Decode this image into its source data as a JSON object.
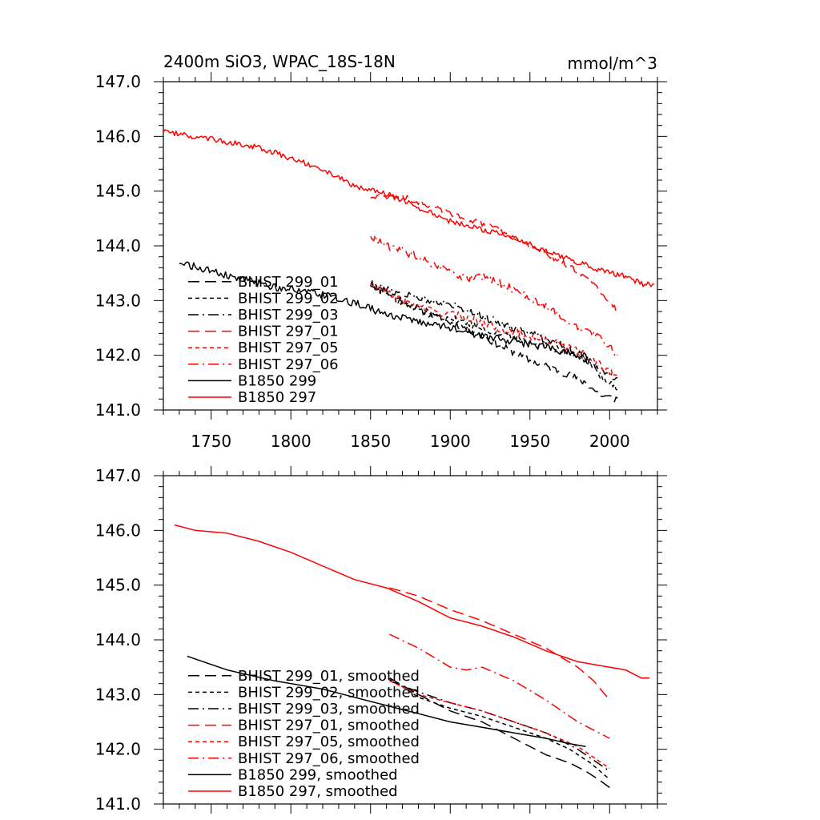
{
  "figure": {
    "title_left": "2400m SiO3, WPAC_18S-18N",
    "title_right": "mmol/m^3"
  },
  "chart_data": [
    {
      "type": "line",
      "title": "2400m SiO3, WPAC_18S-18N",
      "unit": "mmol/m^3",
      "xlim": [
        1720,
        2030
      ],
      "ylim": [
        141.0,
        147.0
      ],
      "x_ticks": [
        1750,
        1800,
        1850,
        1900,
        1950,
        2000
      ],
      "y_ticks": [
        "141.0",
        "142.0",
        "143.0",
        "144.0",
        "145.0",
        "146.0",
        "147.0"
      ],
      "legend_position": "lower-left",
      "series": [
        {
          "name": "BHIST 299_01",
          "color": "#000000",
          "dash": "long-dash",
          "noise": 0.07,
          "points": [
            [
              1850,
              143.3
            ],
            [
              1870,
              143.0
            ],
            [
              1890,
              142.7
            ],
            [
              1910,
              142.5
            ],
            [
              1930,
              142.2
            ],
            [
              1950,
              141.9
            ],
            [
              1970,
              141.7
            ],
            [
              1985,
              141.5
            ],
            [
              1995,
              141.25
            ],
            [
              2005,
              141.2
            ]
          ]
        },
        {
          "name": "BHIST 299_02",
          "color": "#000000",
          "dash": "short-dash",
          "noise": 0.07,
          "points": [
            [
              1850,
              143.3
            ],
            [
              1870,
              142.95
            ],
            [
              1890,
              142.75
            ],
            [
              1910,
              142.6
            ],
            [
              1930,
              142.4
            ],
            [
              1950,
              142.25
            ],
            [
              1970,
              142.1
            ],
            [
              1985,
              141.9
            ],
            [
              1995,
              141.6
            ],
            [
              2005,
              141.4
            ]
          ]
        },
        {
          "name": "BHIST 299_03",
          "color": "#000000",
          "dash": "dash-dot",
          "noise": 0.07,
          "points": [
            [
              1850,
              143.3
            ],
            [
              1870,
              143.1
            ],
            [
              1890,
              143.0
            ],
            [
              1910,
              142.85
            ],
            [
              1930,
              142.6
            ],
            [
              1950,
              142.4
            ],
            [
              1970,
              142.2
            ],
            [
              1985,
              141.95
            ],
            [
              1995,
              141.7
            ],
            [
              2005,
              141.55
            ]
          ]
        },
        {
          "name": "BHIST 297_01",
          "color": "#ff0000",
          "dash": "long-dash",
          "noise": 0.05,
          "points": [
            [
              1850,
              144.9
            ],
            [
              1870,
              144.9
            ],
            [
              1890,
              144.7
            ],
            [
              1910,
              144.5
            ],
            [
              1930,
              144.3
            ],
            [
              1950,
              144.0
            ],
            [
              1970,
              143.7
            ],
            [
              1985,
              143.45
            ],
            [
              1995,
              143.15
            ],
            [
              2005,
              142.8
            ]
          ]
        },
        {
          "name": "BHIST 297_05",
          "color": "#ff0000",
          "dash": "short-dash",
          "noise": 0.07,
          "points": [
            [
              1850,
              143.3
            ],
            [
              1870,
              143.0
            ],
            [
              1890,
              142.8
            ],
            [
              1910,
              142.7
            ],
            [
              1930,
              142.5
            ],
            [
              1950,
              142.35
            ],
            [
              1970,
              142.2
            ],
            [
              1985,
              142.0
            ],
            [
              1995,
              141.8
            ],
            [
              2005,
              141.6
            ]
          ]
        },
        {
          "name": "BHIST 297_06",
          "color": "#ff0000",
          "dash": "dash-dot",
          "noise": 0.07,
          "points": [
            [
              1850,
              144.2
            ],
            [
              1860,
              144.0
            ],
            [
              1880,
              143.8
            ],
            [
              1900,
              143.5
            ],
            [
              1910,
              143.4
            ],
            [
              1920,
              143.45
            ],
            [
              1940,
              143.2
            ],
            [
              1960,
              142.9
            ],
            [
              1980,
              142.5
            ],
            [
              1995,
              142.3
            ],
            [
              2005,
              142.0
            ]
          ]
        },
        {
          "name": "B1850 299",
          "color": "#000000",
          "dash": "solid",
          "noise": 0.07,
          "points": [
            [
              1730,
              143.7
            ],
            [
              1760,
              143.45
            ],
            [
              1790,
              143.25
            ],
            [
              1820,
              143.1
            ],
            [
              1840,
              142.95
            ],
            [
              1860,
              142.75
            ],
            [
              1880,
              142.6
            ],
            [
              1900,
              142.5
            ],
            [
              1920,
              142.35
            ],
            [
              1940,
              142.25
            ],
            [
              1960,
              142.15
            ],
            [
              1975,
              142.05
            ],
            [
              1988,
              141.95
            ]
          ]
        },
        {
          "name": "B1850 297",
          "color": "#ff0000",
          "dash": "solid",
          "noise": 0.05,
          "points": [
            [
              1720,
              146.1
            ],
            [
              1740,
              146.0
            ],
            [
              1760,
              145.9
            ],
            [
              1780,
              145.8
            ],
            [
              1800,
              145.6
            ],
            [
              1820,
              145.4
            ],
            [
              1840,
              145.1
            ],
            [
              1860,
              144.95
            ],
            [
              1880,
              144.7
            ],
            [
              1900,
              144.45
            ],
            [
              1920,
              144.3
            ],
            [
              1940,
              144.15
            ],
            [
              1960,
              143.9
            ],
            [
              1980,
              143.7
            ],
            [
              2000,
              143.5
            ],
            [
              2010,
              143.45
            ],
            [
              2020,
              143.3
            ],
            [
              2028,
              143.3
            ]
          ]
        }
      ]
    },
    {
      "type": "line",
      "xlim": [
        1720,
        2030
      ],
      "ylim": [
        141.0,
        147.0
      ],
      "y_ticks": [
        "141.0",
        "142.0",
        "143.0",
        "144.0",
        "145.0",
        "146.0",
        "147.0"
      ],
      "legend_position": "lower-left",
      "series": [
        {
          "name": "BHIST 299_01, smoothed",
          "color": "#000000",
          "dash": "long-dash",
          "noise": 0,
          "points": [
            [
              1862,
              143.3
            ],
            [
              1880,
              143.0
            ],
            [
              1900,
              142.7
            ],
            [
              1920,
              142.5
            ],
            [
              1940,
              142.2
            ],
            [
              1960,
              141.9
            ],
            [
              1975,
              141.75
            ],
            [
              1985,
              141.6
            ],
            [
              1993,
              141.45
            ],
            [
              2000,
              141.3
            ]
          ]
        },
        {
          "name": "BHIST 299_02, smoothed",
          "color": "#000000",
          "dash": "short-dash",
          "noise": 0,
          "points": [
            [
              1862,
              143.3
            ],
            [
              1880,
              142.95
            ],
            [
              1900,
              142.75
            ],
            [
              1920,
              142.6
            ],
            [
              1940,
              142.4
            ],
            [
              1960,
              142.2
            ],
            [
              1975,
              142.0
            ],
            [
              1988,
              141.75
            ],
            [
              2000,
              141.45
            ]
          ]
        },
        {
          "name": "BHIST 299_03, smoothed",
          "color": "#000000",
          "dash": "dash-dot",
          "noise": 0,
          "points": [
            [
              1862,
              143.25
            ],
            [
              1880,
              143.05
            ],
            [
              1900,
              142.85
            ],
            [
              1920,
              142.7
            ],
            [
              1940,
              142.5
            ],
            [
              1960,
              142.3
            ],
            [
              1980,
              142.0
            ],
            [
              2000,
              141.6
            ]
          ]
        },
        {
          "name": "BHIST 297_01, smoothed",
          "color": "#ff0000",
          "dash": "long-dash",
          "noise": 0,
          "points": [
            [
              1862,
              144.95
            ],
            [
              1880,
              144.8
            ],
            [
              1900,
              144.55
            ],
            [
              1920,
              144.35
            ],
            [
              1940,
              144.1
            ],
            [
              1960,
              143.85
            ],
            [
              1980,
              143.5
            ],
            [
              1990,
              143.25
            ],
            [
              2000,
              142.9
            ]
          ]
        },
        {
          "name": "BHIST 297_05, smoothed",
          "color": "#ff0000",
          "dash": "short-dash",
          "noise": 0,
          "points": [
            [
              1862,
              143.25
            ],
            [
              1880,
              143.0
            ],
            [
              1900,
              142.85
            ],
            [
              1920,
              142.7
            ],
            [
              1940,
              142.5
            ],
            [
              1960,
              142.3
            ],
            [
              1980,
              142.05
            ],
            [
              2000,
              141.65
            ]
          ]
        },
        {
          "name": "BHIST 297_06, smoothed",
          "color": "#ff0000",
          "dash": "dash-dot",
          "noise": 0,
          "points": [
            [
              1862,
              144.1
            ],
            [
              1880,
              143.85
            ],
            [
              1900,
              143.5
            ],
            [
              1910,
              143.45
            ],
            [
              1920,
              143.5
            ],
            [
              1940,
              143.25
            ],
            [
              1960,
              142.9
            ],
            [
              1980,
              142.5
            ],
            [
              1990,
              142.35
            ],
            [
              2000,
              142.2
            ]
          ]
        },
        {
          "name": "B1850 299, smoothed",
          "color": "#000000",
          "dash": "solid",
          "noise": 0,
          "points": [
            [
              1735,
              143.7
            ],
            [
              1760,
              143.45
            ],
            [
              1790,
              143.25
            ],
            [
              1820,
              143.1
            ],
            [
              1840,
              142.95
            ],
            [
              1860,
              142.8
            ],
            [
              1880,
              142.65
            ],
            [
              1900,
              142.5
            ],
            [
              1920,
              142.4
            ],
            [
              1940,
              142.3
            ],
            [
              1960,
              142.2
            ],
            [
              1975,
              142.1
            ],
            [
              1985,
              142.05
            ]
          ]
        },
        {
          "name": "B1850 297, smoothed",
          "color": "#ff0000",
          "dash": "solid",
          "noise": 0,
          "points": [
            [
              1727,
              146.1
            ],
            [
              1740,
              146.0
            ],
            [
              1760,
              145.95
            ],
            [
              1780,
              145.8
            ],
            [
              1800,
              145.6
            ],
            [
              1820,
              145.35
            ],
            [
              1840,
              145.1
            ],
            [
              1860,
              144.95
            ],
            [
              1880,
              144.7
            ],
            [
              1900,
              144.4
            ],
            [
              1920,
              144.25
            ],
            [
              1940,
              144.05
            ],
            [
              1960,
              143.8
            ],
            [
              1980,
              143.6
            ],
            [
              2000,
              143.5
            ],
            [
              2010,
              143.45
            ],
            [
              2020,
              143.3
            ],
            [
              2025,
              143.3
            ]
          ]
        }
      ]
    }
  ]
}
